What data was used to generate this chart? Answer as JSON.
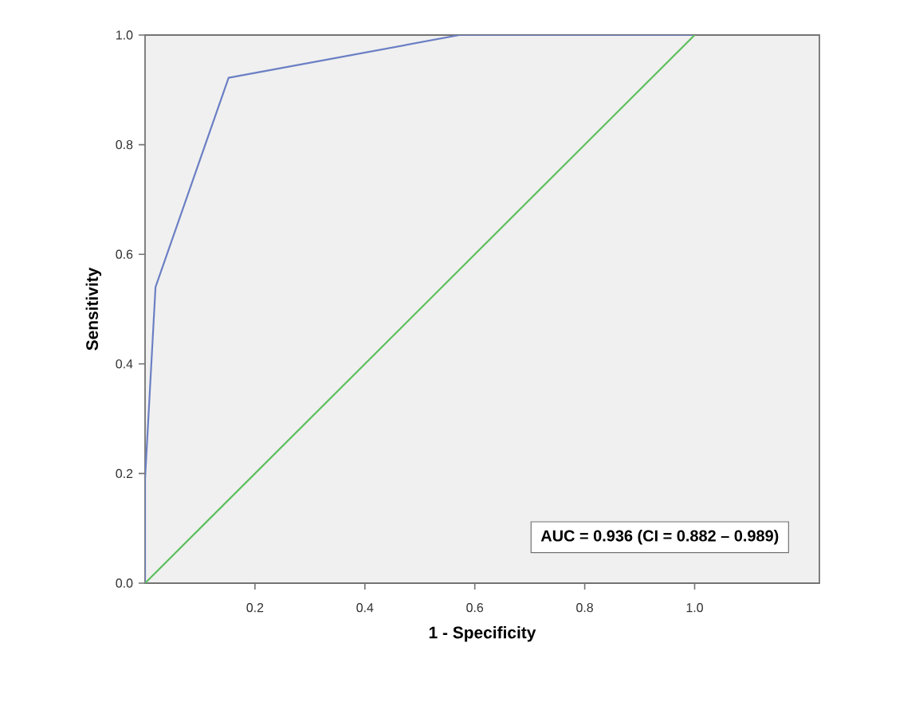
{
  "chart_data": {
    "type": "line",
    "xlabel": "1 - Specificity",
    "ylabel": "Sensitivity",
    "xlim": [
      0,
      1.227
    ],
    "ylim": [
      0,
      1.0
    ],
    "xticks": [
      {
        "value": 0.2,
        "label": "0.2"
      },
      {
        "value": 0.4,
        "label": "0.4"
      },
      {
        "value": 0.6,
        "label": "0.6"
      },
      {
        "value": 0.8,
        "label": "0.8"
      },
      {
        "value": 1.0,
        "label": "1.0"
      }
    ],
    "yticks": [
      {
        "value": 0,
        "label": "0.0"
      },
      {
        "value": 0.2,
        "label": "0.2"
      },
      {
        "value": 0.4,
        "label": "0.4"
      },
      {
        "value": 0.6,
        "label": "0.6"
      },
      {
        "value": 0.8,
        "label": "0.8"
      },
      {
        "value": 1.0,
        "label": "1.0"
      }
    ],
    "series": [
      {
        "color": "#6b7fc4",
        "x": [
          0,
          0,
          0.019,
          0.152,
          0.572,
          1.0
        ],
        "values": [
          0,
          0.19,
          0.54,
          0.922,
          1.0,
          1.0
        ]
      },
      {
        "color": "#5cbf5c",
        "x": [
          0,
          1.0
        ],
        "values": [
          0,
          1.0
        ]
      }
    ],
    "annotations": [
      "AUC = 0.936 (CI = 0.882 – 0.989)"
    ]
  }
}
